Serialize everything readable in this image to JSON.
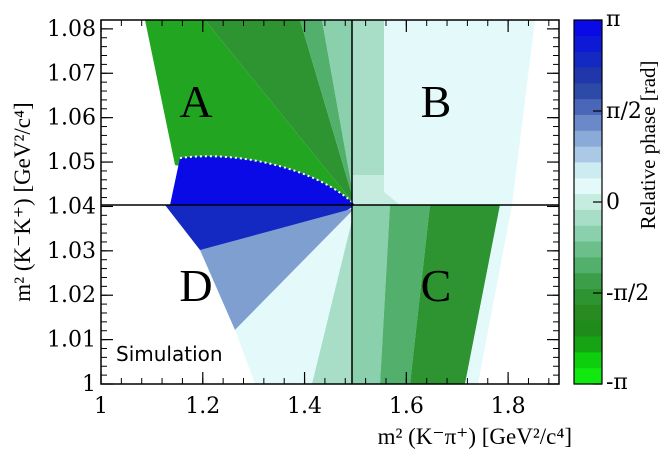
{
  "chart_data": {
    "type": "heatmap",
    "xlabel": "m² (K⁻π⁺) [GeV²/c⁴]",
    "ylabel": "m² (K⁻K⁺) [GeV²/c⁴]",
    "xlim": [
      1.0,
      1.9
    ],
    "ylim": [
      1.0,
      1.082
    ],
    "x_ticks": [
      "1",
      "1.2",
      "1.4",
      "1.6",
      "1.8"
    ],
    "y_ticks": [
      "1",
      "1.01",
      "1.02",
      "1.03",
      "1.04",
      "1.05",
      "1.06",
      "1.07",
      "1.08"
    ],
    "crosshair": {
      "x": 1.48,
      "y": 1.0405
    },
    "region_labels": [
      {
        "text": "A",
        "x": 1.16,
        "y": 1.063
      },
      {
        "text": "B",
        "x": 1.66,
        "y": 1.063
      },
      {
        "text": "C",
        "x": 1.655,
        "y": 1.021
      },
      {
        "text": "D",
        "x": 1.16,
        "y": 1.021
      }
    ],
    "annotation": "Simulation",
    "colorbar": {
      "title": "Relative phase [rad]",
      "min": -3.1416,
      "max": 3.1416,
      "tick_labels": [
        "π",
        "π/2",
        "0",
        "-π/2",
        "-π"
      ],
      "tick_values": [
        3.1416,
        1.5708,
        0,
        -1.5708,
        -3.1416
      ],
      "colors": [
        "#0a0ae6",
        "#0d19d6",
        "#1428c2",
        "#2236ab",
        "#2d4aa6",
        "#4a66b8",
        "#6b88c8",
        "#8aaad8",
        "#abc8e6",
        "#ccecf2",
        "#e4fafa",
        "#c6ece0",
        "#a8dec8",
        "#8ad0ac",
        "#6cbf8a",
        "#52b06c",
        "#3c9e48",
        "#2e9432",
        "#2a8a22",
        "#1f8c1a",
        "#16a414",
        "#0ecf0e",
        "#10e810"
      ]
    },
    "grid": false
  }
}
